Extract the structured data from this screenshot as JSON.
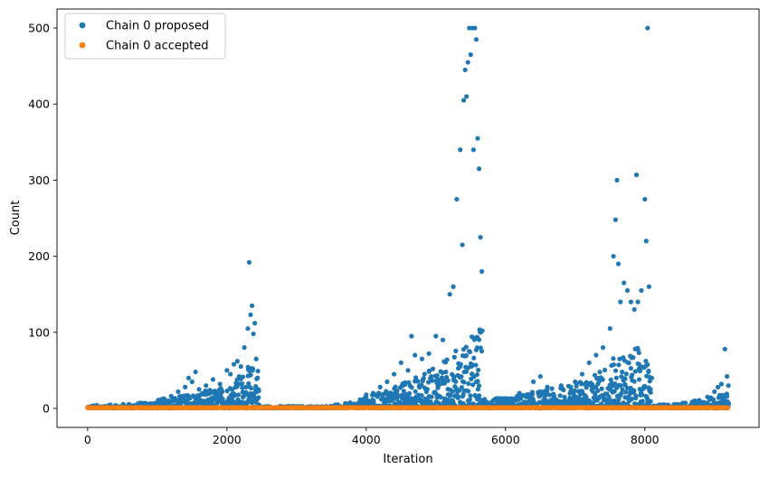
{
  "chart_data": {
    "type": "scatter",
    "title": "",
    "xlabel": "Iteration",
    "ylabel": "Count",
    "xlim": [
      -440,
      9640
    ],
    "ylim": [
      -25,
      525
    ],
    "x_ticks": [
      0,
      2000,
      4000,
      6000,
      8000
    ],
    "y_ticks": [
      0,
      100,
      200,
      300,
      400,
      500
    ],
    "grid": false,
    "legend": {
      "location": "upper left"
    },
    "colors": {
      "proposed": "#1f77b4",
      "accepted": "#ff7f0e"
    },
    "series": [
      {
        "name": "Chain 0 proposed",
        "color": "#1f77b4",
        "marker": "dot",
        "x": [
          0,
          100,
          200,
          400,
          600,
          800,
          1000,
          1100,
          1200,
          1300,
          1400,
          1450,
          1500,
          1550,
          1600,
          1700,
          1800,
          1900,
          2000,
          2050,
          2100,
          2150,
          2200,
          2250,
          2300,
          2320,
          2340,
          2360,
          2380,
          2400,
          2420,
          2440,
          2500,
          2800,
          3200,
          3500,
          3700,
          3800,
          3900,
          4000,
          4100,
          4200,
          4300,
          4400,
          4500,
          4600,
          4650,
          4700,
          4800,
          4900,
          5000,
          5100,
          5200,
          5250,
          5300,
          5350,
          5380,
          5400,
          5420,
          5440,
          5460,
          5480,
          5500,
          5520,
          5540,
          5560,
          5580,
          5600,
          5620,
          5640,
          5660,
          5700,
          5800,
          6000,
          6200,
          6400,
          6500,
          6600,
          6800,
          7000,
          7100,
          7200,
          7300,
          7400,
          7500,
          7550,
          7580,
          7600,
          7620,
          7650,
          7700,
          7750,
          7800,
          7850,
          7880,
          7900,
          7950,
          8000,
          8020,
          8040,
          8060,
          8100,
          8300,
          8500,
          8700,
          8900,
          9000,
          9050,
          9100,
          9150,
          9180,
          9200
        ],
        "y": [
          1,
          3,
          2,
          4,
          5,
          7,
          8,
          12,
          16,
          22,
          28,
          40,
          35,
          48,
          25,
          30,
          38,
          32,
          50,
          45,
          58,
          62,
          55,
          80,
          105,
          192,
          123,
          135,
          98,
          112,
          65,
          40,
          1,
          1,
          1,
          1,
          3,
          5,
          6,
          18,
          20,
          28,
          35,
          45,
          60,
          50,
          95,
          70,
          65,
          72,
          95,
          90,
          150,
          160,
          275,
          340,
          215,
          405,
          445,
          410,
          455,
          500,
          465,
          500,
          340,
          500,
          485,
          355,
          315,
          225,
          180,
          12,
          8,
          10,
          20,
          35,
          42,
          28,
          30,
          35,
          45,
          60,
          70,
          80,
          105,
          200,
          248,
          300,
          190,
          140,
          165,
          155,
          140,
          130,
          307,
          140,
          155,
          275,
          220,
          500,
          160,
          40,
          4,
          5,
          8,
          15,
          22,
          28,
          32,
          78,
          42,
          30
        ],
        "envelope": [
          [
            0,
            4
          ],
          [
            400,
            5
          ],
          [
            800,
            8
          ],
          [
            1200,
            15
          ],
          [
            1600,
            22
          ],
          [
            2000,
            30
          ],
          [
            2300,
            55
          ],
          [
            2440,
            60
          ],
          [
            2460,
            3
          ],
          [
            3400,
            3
          ],
          [
            3800,
            8
          ],
          [
            4200,
            22
          ],
          [
            4600,
            38
          ],
          [
            5000,
            55
          ],
          [
            5300,
            80
          ],
          [
            5500,
            95
          ],
          [
            5640,
            110
          ],
          [
            5660,
            12
          ],
          [
            6000,
            14
          ],
          [
            6400,
            22
          ],
          [
            6800,
            28
          ],
          [
            7200,
            40
          ],
          [
            7600,
            70
          ],
          [
            7900,
            80
          ],
          [
            8060,
            60
          ],
          [
            8100,
            4
          ],
          [
            8500,
            7
          ],
          [
            8900,
            14
          ],
          [
            9200,
            20
          ]
        ]
      },
      {
        "name": "Chain 0 accepted",
        "color": "#ff7f0e",
        "marker": "dot",
        "x": [
          0,
          9200
        ],
        "y": [
          1,
          1
        ],
        "dense_range": [
          0,
          9200
        ],
        "value": 1
      }
    ]
  }
}
